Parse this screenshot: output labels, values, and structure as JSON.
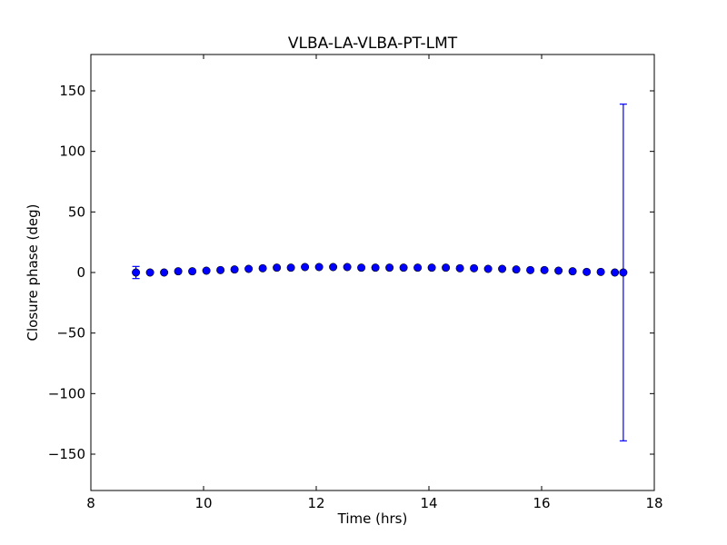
{
  "chart_data": {
    "type": "scatter",
    "title": "VLBA-LA-VLBA-PT-LMT",
    "xlabel": "Time (hrs)",
    "ylabel": "Closure phase (deg)",
    "xlim": [
      8,
      18
    ],
    "ylim": [
      -180,
      180
    ],
    "x_ticks": [
      8,
      10,
      12,
      14,
      16,
      18
    ],
    "y_ticks": [
      -150,
      -100,
      -50,
      0,
      50,
      100,
      150
    ],
    "x_tick_labels": [
      "8",
      "10",
      "12",
      "14",
      "16",
      "18"
    ],
    "y_tick_labels": [
      "−150",
      "−100",
      "−50",
      "0",
      "50",
      "100",
      "150"
    ],
    "grid": false,
    "marker_color": "#0000ff",
    "errorbar_color": "#0000ff",
    "series": [
      {
        "x": [
          8.8,
          9.05,
          9.3,
          9.55,
          9.8,
          10.05,
          10.3,
          10.55,
          10.8,
          11.05,
          11.3,
          11.55,
          11.8,
          12.05,
          12.3,
          12.55,
          12.8,
          13.05,
          13.3,
          13.55,
          13.8,
          14.05,
          14.3,
          14.55,
          14.8,
          15.05,
          15.3,
          15.55,
          15.8,
          16.05,
          16.3,
          16.55,
          16.8,
          17.05,
          17.3,
          17.45
        ],
        "y": [
          0,
          0,
          0,
          1,
          1,
          1.5,
          2,
          2.5,
          3,
          3.5,
          4,
          4,
          4.5,
          4.5,
          4.5,
          4.5,
          4,
          4,
          4,
          4,
          4,
          4,
          4,
          3.5,
          3.5,
          3,
          3,
          2.5,
          2,
          2,
          1.5,
          1,
          0.5,
          0.5,
          0,
          0
        ],
        "yerr": [
          5,
          0,
          0,
          0,
          0,
          0,
          0,
          0,
          0,
          0,
          0,
          0,
          0,
          0,
          0,
          0,
          0,
          0,
          0,
          0,
          0,
          0,
          0,
          0,
          0,
          0,
          0,
          0,
          0,
          0,
          0,
          0,
          0,
          0,
          0,
          139
        ]
      }
    ]
  }
}
